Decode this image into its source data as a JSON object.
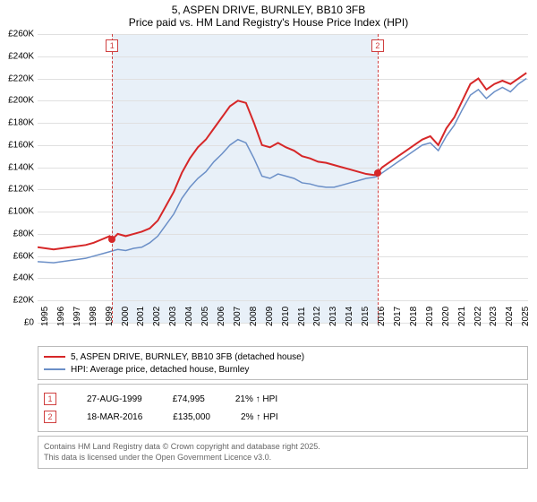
{
  "title": {
    "line1": "5, ASPEN DRIVE, BURNLEY, BB10 3FB",
    "line2": "Price paid vs. HM Land Registry's House Price Index (HPI)"
  },
  "chart": {
    "type": "line",
    "background_color": "#ffffff",
    "grid_color": "#e0e0e0",
    "shade_color": "#e8f0f8",
    "ylim": [
      0,
      260000
    ],
    "ytick_step": 20000,
    "yticks": [
      "£0",
      "£20K",
      "£40K",
      "£60K",
      "£80K",
      "£100K",
      "£120K",
      "£140K",
      "£160K",
      "£180K",
      "£200K",
      "£220K",
      "£240K",
      "£260K"
    ],
    "xlim": [
      1995,
      2025.6
    ],
    "xticks": [
      1995,
      1996,
      1997,
      1998,
      1999,
      2000,
      2001,
      2002,
      2003,
      2004,
      2005,
      2006,
      2007,
      2008,
      2009,
      2010,
      2011,
      2012,
      2013,
      2014,
      2015,
      2016,
      2017,
      2018,
      2019,
      2020,
      2021,
      2022,
      2023,
      2024,
      2025
    ],
    "shade_start": 1999.65,
    "shade_end": 2016.21,
    "series": [
      {
        "name": "price",
        "color": "#d62728",
        "width": 2,
        "points": [
          [
            1995,
            68000
          ],
          [
            1996,
            66000
          ],
          [
            1997,
            68000
          ],
          [
            1998,
            70000
          ],
          [
            1998.5,
            72000
          ],
          [
            1999,
            75000
          ],
          [
            1999.5,
            78000
          ],
          [
            1999.65,
            74995
          ],
          [
            2000,
            80000
          ],
          [
            2000.5,
            78000
          ],
          [
            2001,
            80000
          ],
          [
            2001.5,
            82000
          ],
          [
            2002,
            85000
          ],
          [
            2002.5,
            92000
          ],
          [
            2003,
            105000
          ],
          [
            2003.5,
            118000
          ],
          [
            2004,
            135000
          ],
          [
            2004.5,
            148000
          ],
          [
            2005,
            158000
          ],
          [
            2005.5,
            165000
          ],
          [
            2006,
            175000
          ],
          [
            2006.5,
            185000
          ],
          [
            2007,
            195000
          ],
          [
            2007.5,
            200000
          ],
          [
            2008,
            198000
          ],
          [
            2008.5,
            180000
          ],
          [
            2009,
            160000
          ],
          [
            2009.5,
            158000
          ],
          [
            2010,
            162000
          ],
          [
            2010.5,
            158000
          ],
          [
            2011,
            155000
          ],
          [
            2011.5,
            150000
          ],
          [
            2012,
            148000
          ],
          [
            2012.5,
            145000
          ],
          [
            2013,
            144000
          ],
          [
            2013.5,
            142000
          ],
          [
            2014,
            140000
          ],
          [
            2014.5,
            138000
          ],
          [
            2015,
            136000
          ],
          [
            2015.5,
            134000
          ],
          [
            2016,
            133000
          ],
          [
            2016.21,
            135000
          ],
          [
            2016.5,
            140000
          ],
          [
            2017,
            145000
          ],
          [
            2017.5,
            150000
          ],
          [
            2018,
            155000
          ],
          [
            2018.5,
            160000
          ],
          [
            2019,
            165000
          ],
          [
            2019.5,
            168000
          ],
          [
            2020,
            160000
          ],
          [
            2020.5,
            175000
          ],
          [
            2021,
            185000
          ],
          [
            2021.5,
            200000
          ],
          [
            2022,
            215000
          ],
          [
            2022.5,
            220000
          ],
          [
            2023,
            210000
          ],
          [
            2023.5,
            215000
          ],
          [
            2024,
            218000
          ],
          [
            2024.5,
            215000
          ],
          [
            2025,
            220000
          ],
          [
            2025.5,
            225000
          ]
        ]
      },
      {
        "name": "hpi",
        "color": "#6b8fc7",
        "width": 1.5,
        "points": [
          [
            1995,
            55000
          ],
          [
            1996,
            54000
          ],
          [
            1997,
            56000
          ],
          [
            1998,
            58000
          ],
          [
            1998.5,
            60000
          ],
          [
            1999,
            62000
          ],
          [
            1999.5,
            64000
          ],
          [
            2000,
            66000
          ],
          [
            2000.5,
            65000
          ],
          [
            2001,
            67000
          ],
          [
            2001.5,
            68000
          ],
          [
            2002,
            72000
          ],
          [
            2002.5,
            78000
          ],
          [
            2003,
            88000
          ],
          [
            2003.5,
            98000
          ],
          [
            2004,
            112000
          ],
          [
            2004.5,
            122000
          ],
          [
            2005,
            130000
          ],
          [
            2005.5,
            136000
          ],
          [
            2006,
            145000
          ],
          [
            2006.5,
            152000
          ],
          [
            2007,
            160000
          ],
          [
            2007.5,
            165000
          ],
          [
            2008,
            162000
          ],
          [
            2008.5,
            148000
          ],
          [
            2009,
            132000
          ],
          [
            2009.5,
            130000
          ],
          [
            2010,
            134000
          ],
          [
            2010.5,
            132000
          ],
          [
            2011,
            130000
          ],
          [
            2011.5,
            126000
          ],
          [
            2012,
            125000
          ],
          [
            2012.5,
            123000
          ],
          [
            2013,
            122000
          ],
          [
            2013.5,
            122000
          ],
          [
            2014,
            124000
          ],
          [
            2014.5,
            126000
          ],
          [
            2015,
            128000
          ],
          [
            2015.5,
            130000
          ],
          [
            2016,
            131000
          ],
          [
            2016.21,
            132000
          ],
          [
            2016.5,
            135000
          ],
          [
            2017,
            140000
          ],
          [
            2017.5,
            145000
          ],
          [
            2018,
            150000
          ],
          [
            2018.5,
            155000
          ],
          [
            2019,
            160000
          ],
          [
            2019.5,
            162000
          ],
          [
            2020,
            155000
          ],
          [
            2020.5,
            168000
          ],
          [
            2021,
            178000
          ],
          [
            2021.5,
            192000
          ],
          [
            2022,
            205000
          ],
          [
            2022.5,
            210000
          ],
          [
            2023,
            202000
          ],
          [
            2023.5,
            208000
          ],
          [
            2024,
            212000
          ],
          [
            2024.5,
            208000
          ],
          [
            2025,
            215000
          ],
          [
            2025.5,
            220000
          ]
        ]
      }
    ],
    "event_lines": [
      {
        "id": "1",
        "x": 1999.65,
        "y": 74995,
        "color": "#d04040"
      },
      {
        "id": "2",
        "x": 2016.21,
        "y": 135000,
        "color": "#d04040"
      }
    ]
  },
  "legend": {
    "items": [
      {
        "color": "#d62728",
        "label": "5, ASPEN DRIVE, BURNLEY, BB10 3FB (detached house)"
      },
      {
        "color": "#6b8fc7",
        "label": "HPI: Average price, detached house, Burnley"
      }
    ]
  },
  "events": [
    {
      "id": "1",
      "date": "27-AUG-1999",
      "price": "£74,995",
      "delta": "21% ↑ HPI"
    },
    {
      "id": "2",
      "date": "18-MAR-2016",
      "price": "£135,000",
      "delta": "2% ↑ HPI"
    }
  ],
  "attrib": {
    "line1": "Contains HM Land Registry data © Crown copyright and database right 2025.",
    "line2": "This data is licensed under the Open Government Licence v3.0."
  }
}
